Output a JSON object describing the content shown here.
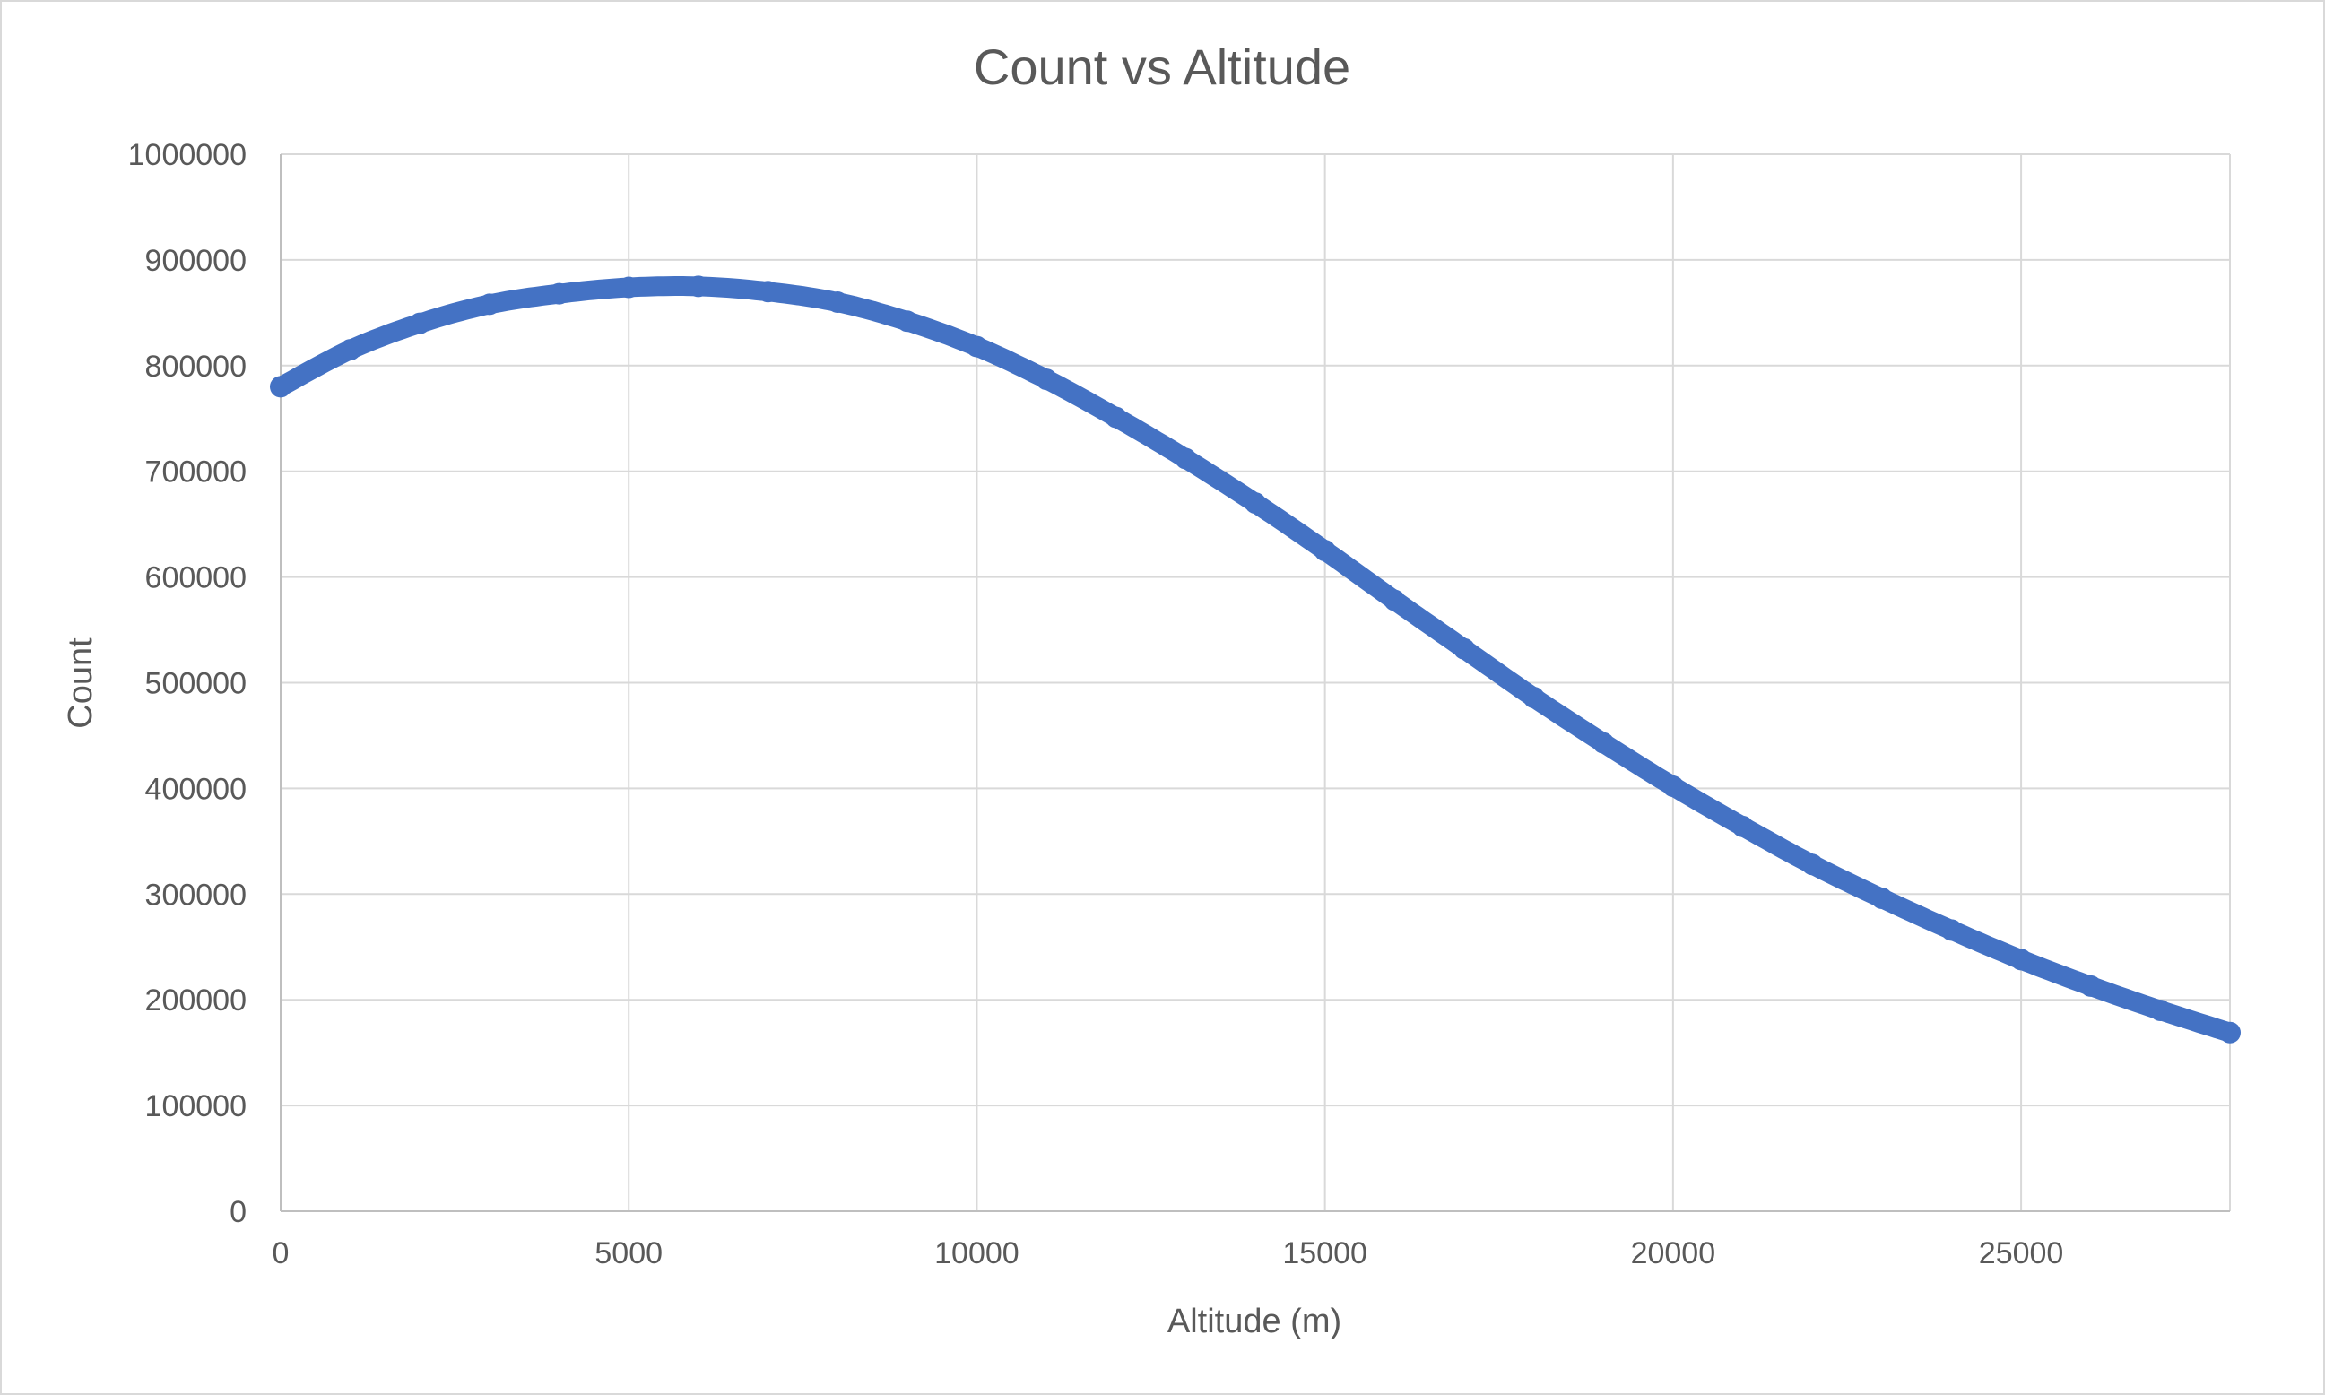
{
  "chart_data": {
    "type": "scatter",
    "title": "Count vs Altitude",
    "xlabel": "Altitude (m)",
    "ylabel": "Count",
    "xlim": [
      0,
      28000
    ],
    "ylim": [
      0,
      1000000
    ],
    "x_ticks": [
      0,
      5000,
      10000,
      15000,
      20000,
      25000
    ],
    "y_ticks": [
      0,
      100000,
      200000,
      300000,
      400000,
      500000,
      600000,
      700000,
      800000,
      900000,
      1000000
    ],
    "grid": true,
    "legend": "none",
    "series_color": "#4472C4",
    "series": [
      {
        "x": [
          0,
          1000,
          2000,
          3000,
          4000,
          5000,
          6000,
          7000,
          8000,
          9000,
          10000,
          11000,
          12000,
          13000,
          14000,
          15000,
          16000,
          17000,
          18000,
          19000,
          20000,
          21000,
          22000,
          23000,
          24000,
          25000,
          26000,
          27000,
          28000
        ],
        "values": [
          780000,
          815000,
          840000,
          858000,
          868000,
          874000,
          875000,
          870000,
          860000,
          842000,
          818000,
          787000,
          751000,
          712000,
          670000,
          625000,
          578000,
          532000,
          486000,
          443000,
          402000,
          364000,
          328000,
          296000,
          266000,
          238000,
          213000,
          190000,
          169000
        ]
      }
    ]
  }
}
